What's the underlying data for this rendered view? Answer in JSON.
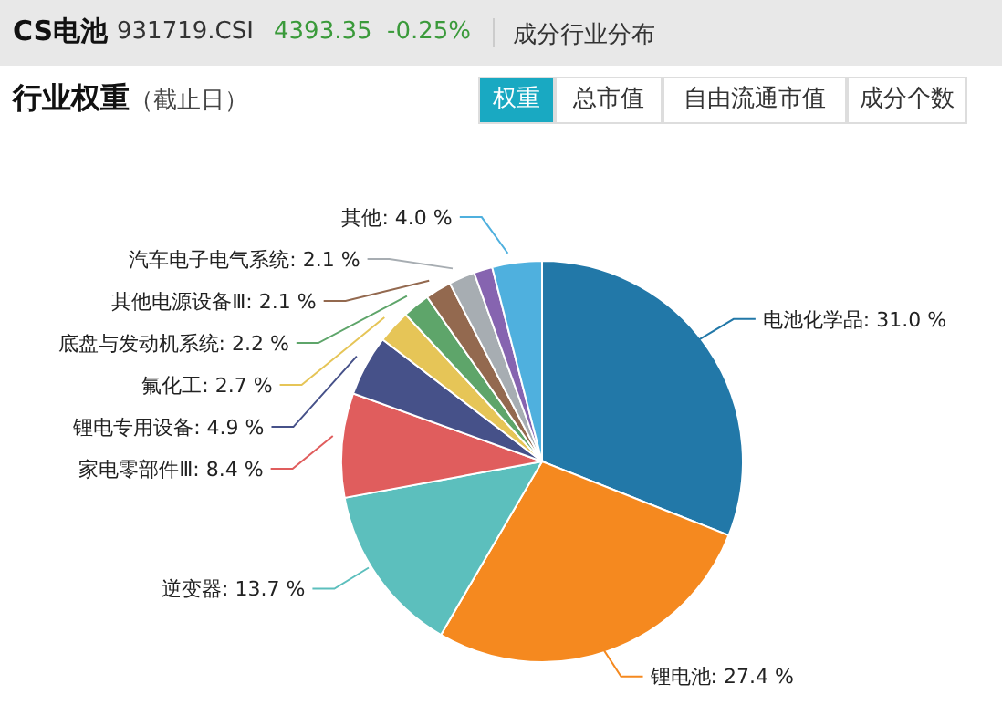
{
  "chart_data": {
    "type": "pie",
    "title": "行业权重",
    "subtitle": "（截止日）",
    "annotations": [
      "CS电池",
      "931719.CSI",
      "4393.35",
      "-0.25%",
      "成分行业分布",
      "权重",
      "总市值",
      "自由流通市值",
      "成分个数"
    ],
    "categories": [
      "电池化学品",
      "锂电池",
      "逆变器",
      "家电零部件Ⅲ",
      "锂电专用设备",
      "氟化工",
      "底盘与发动机系统",
      "其他电源设备Ⅲ",
      "汽车电子电气系统",
      null,
      "其他"
    ],
    "values": [
      31.0,
      27.4,
      13.7,
      8.4,
      4.9,
      2.7,
      2.2,
      2.1,
      2.1,
      1.5,
      4.0
    ],
    "value_labels": [
      "31.0 %",
      "27.4 %",
      "13.7 %",
      "8.4 %",
      "4.9 %",
      "2.7 %",
      "2.2 %",
      "2.1 %",
      "2.1 %",
      null,
      "4.0 %"
    ],
    "colors": [
      "#2278a8",
      "#f5891f",
      "#5cbfbd",
      "#e05d5d",
      "#465189",
      "#e6c557",
      "#5ea56a",
      "#93694f",
      "#a7adb2",
      "#8664b0",
      "#4fb0de"
    ],
    "legend": false
  }
}
